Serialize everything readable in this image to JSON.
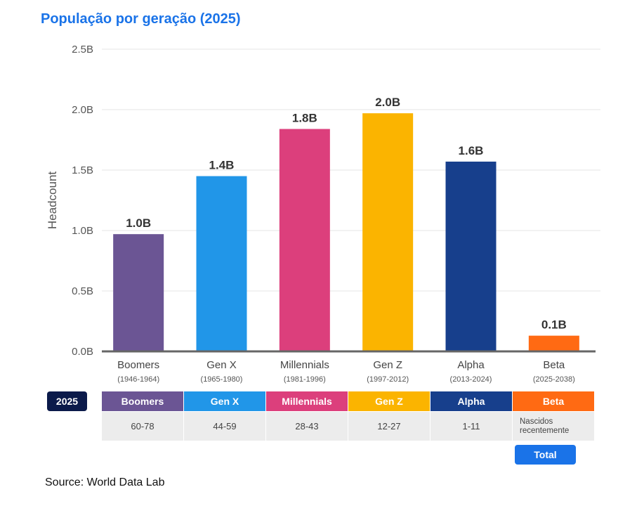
{
  "title": "População por geração (2025)",
  "source": "Source: World Data Lab",
  "table": {
    "row_label": "2025",
    "total_label": "Total"
  },
  "colors": {
    "title": "#1a73e8",
    "axis": "#666666",
    "grid": "#e6e6e6"
  },
  "chart_data": {
    "type": "bar",
    "ylabel": "Headcount",
    "ylim": [
      0,
      2.5
    ],
    "yticks": [
      {
        "value": 0,
        "label": "0.0B"
      },
      {
        "value": 0.5,
        "label": "0.5B"
      },
      {
        "value": 1.0,
        "label": "1.0B"
      },
      {
        "value": 1.5,
        "label": "1.5B"
      },
      {
        "value": 2.0,
        "label": "2.0B"
      },
      {
        "value": 2.5,
        "label": "2.5B"
      }
    ],
    "grid": true,
    "categories": [
      {
        "name": "Boomers",
        "years": "(1946-1964)",
        "value": 0.97,
        "label": "1.0B",
        "color": "#6b5594",
        "ages": "60-78"
      },
      {
        "name": "Gen X",
        "years": "(1965-1980)",
        "value": 1.45,
        "label": "1.4B",
        "color": "#2196e8",
        "ages": "44-59"
      },
      {
        "name": "Millennials",
        "years": "(1981-1996)",
        "value": 1.84,
        "label": "1.8B",
        "color": "#dc3f7c",
        "ages": "28-43"
      },
      {
        "name": "Gen Z",
        "years": "(1997-2012)",
        "value": 1.97,
        "label": "2.0B",
        "color": "#fbb400",
        "ages": "12-27"
      },
      {
        "name": "Alpha",
        "years": "(2013-2024)",
        "value": 1.57,
        "label": "1.6B",
        "color": "#173f8c",
        "ages": "1-11"
      },
      {
        "name": "Beta",
        "years": "(2025-2038)",
        "value": 0.13,
        "label": "0.1B",
        "color": "#ff6a13",
        "ages": "Nascidos recentemente"
      }
    ]
  }
}
